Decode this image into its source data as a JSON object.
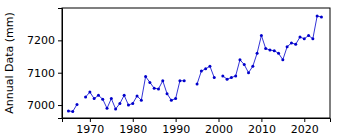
{
  "chart_data": {
    "type": "line",
    "y_label": "Annual Data (mm)",
    "x": [
      1965,
      1966,
      1967,
      1968,
      1969,
      1970,
      1971,
      1972,
      1973,
      1974,
      1975,
      1976,
      1977,
      1978,
      1979,
      1980,
      1981,
      1982,
      1983,
      1984,
      1985,
      1986,
      1987,
      1988,
      1989,
      1990,
      1991,
      1992,
      1993,
      1994,
      1995,
      1996,
      1997,
      1998,
      1999,
      2000,
      2001,
      2002,
      2003,
      2004,
      2005,
      2006,
      2007,
      2008,
      2009,
      2010,
      2011,
      2012,
      2013,
      2014,
      2015,
      2016,
      2017,
      2018,
      2019,
      2020,
      2021,
      2022,
      2023,
      2024
    ],
    "series": [
      {
        "name": "Annual Data",
        "color": "#0000cc",
        "marker": "circle",
        "line_style": "solid",
        "values": [
          6982,
          6980,
          7002,
          null,
          7025,
          7040,
          7020,
          7030,
          7018,
          6990,
          7020,
          6988,
          7005,
          7030,
          7000,
          7005,
          7028,
          7015,
          7088,
          7070,
          7052,
          7050,
          7075,
          7035,
          7015,
          7020,
          7075,
          7075,
          null,
          null,
          7065,
          7105,
          7112,
          7120,
          7085,
          null,
          7090,
          7080,
          7085,
          7090,
          7140,
          7125,
          7100,
          7120,
          7160,
          7215,
          7175,
          7170,
          7168,
          7160,
          7140,
          7180,
          7192,
          7188,
          7210,
          7205,
          7215,
          7205,
          7275,
          7272
        ]
      }
    ],
    "xlim": [
      1963.5,
      2026
    ],
    "xticks": [
      1970,
      1980,
      1990,
      2000,
      2010,
      2020
    ],
    "ylim": [
      6960,
      7300
    ],
    "yticks": [
      7000,
      7100,
      7200
    ],
    "grid": false
  }
}
